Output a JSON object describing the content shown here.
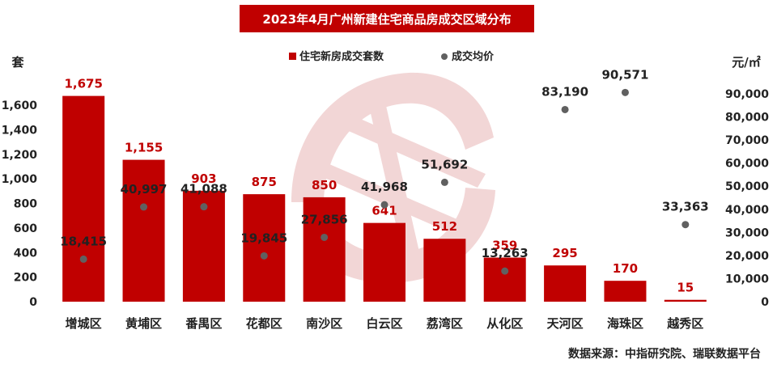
{
  "page_title": "2023年4月广州新建住宅商品房成交区域分布",
  "source_note": "数据来源：中指研究院、瑞联数据平台",
  "colors": {
    "bar": "#c00000",
    "point": "#606060",
    "bar_label": "#c00000",
    "point_label": "#222222",
    "watermark": "#e8b5b5"
  },
  "chart_data": {
    "type": "bar",
    "categories": [
      "增城区",
      "黄埔区",
      "番禺区",
      "花都区",
      "南沙区",
      "白云区",
      "荔湾区",
      "从化区",
      "天河区",
      "海珠区",
      "越秀区"
    ],
    "series": [
      {
        "name": "住宅新房成交套数",
        "type": "bar",
        "axis": "left",
        "values": [
          1675,
          1155,
          903,
          875,
          850,
          641,
          512,
          359,
          295,
          170,
          15
        ],
        "labels": [
          "1,675",
          "1,155",
          "903",
          "875",
          "850",
          "641",
          "512",
          "359",
          "295",
          "170",
          "15"
        ]
      },
      {
        "name": "成交均价",
        "type": "scatter",
        "axis": "right",
        "values": [
          18415,
          40997,
          41088,
          19845,
          27856,
          41968,
          51692,
          13263,
          83190,
          90571,
          33363
        ],
        "labels": [
          "18,415",
          "40,997",
          "41,088",
          "19,845",
          "27,856",
          "41,968",
          "51,692",
          "13,263",
          "83,190",
          "90,571",
          "33,363"
        ]
      }
    ],
    "y_left": {
      "label": "套",
      "range": [
        0,
        1600
      ],
      "ticks": [
        "0",
        "200",
        "400",
        "600",
        "800",
        "1,000",
        "1,200",
        "1,400",
        "1,600"
      ]
    },
    "y_right": {
      "label": "元/㎡",
      "range": [
        0,
        90000
      ],
      "ticks": [
        "0",
        "10,000",
        "20,000",
        "30,000",
        "40,000",
        "50,000",
        "60,000",
        "70,000",
        "80,000",
        "90,000"
      ]
    },
    "legend_position": "top-center",
    "grid": false
  }
}
